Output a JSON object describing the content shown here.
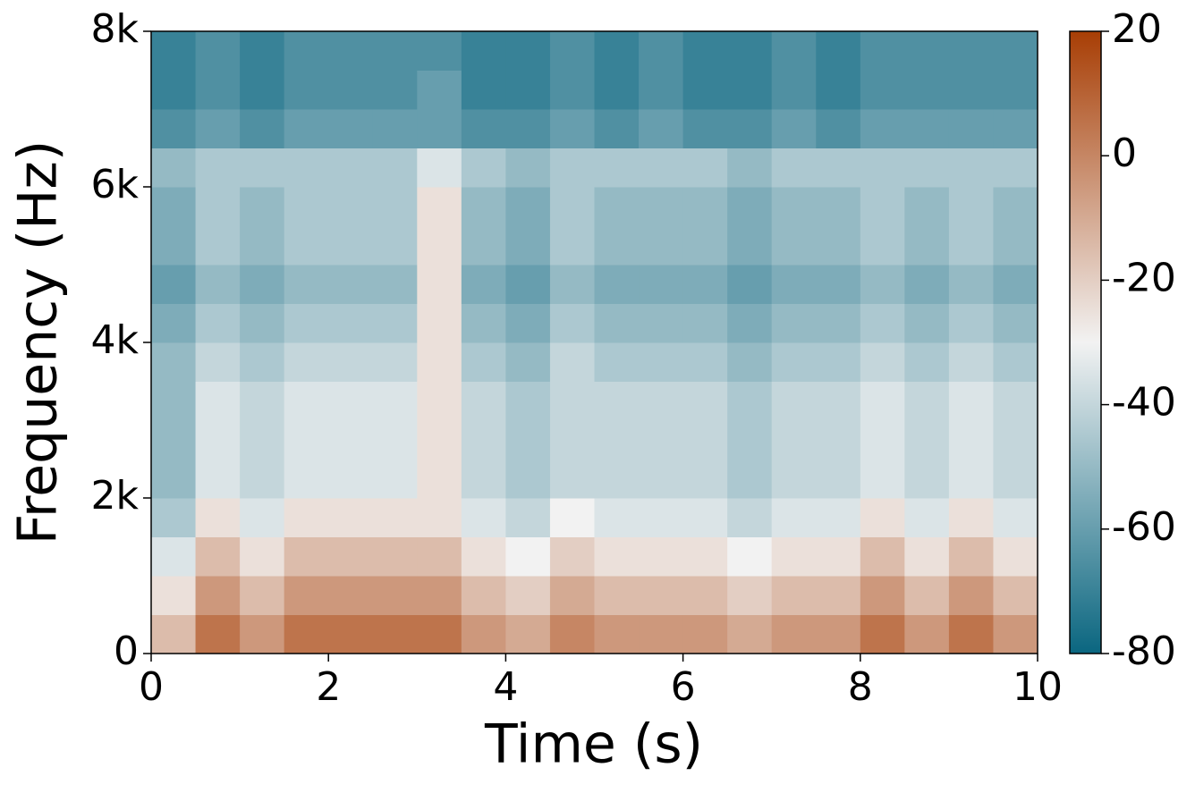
{
  "chart_data": {
    "type": "heatmap",
    "xlabel": "Time (s)",
    "ylabel": "Frequency (Hz)",
    "x_bins": [
      0,
      0.5,
      1,
      1.5,
      2,
      2.5,
      3,
      3.5,
      4,
      4.5,
      5,
      5.5,
      6,
      6.5,
      7,
      7.5,
      8,
      8.5,
      9,
      9.5,
      10
    ],
    "y_bins": [
      0,
      500,
      1000,
      1500,
      2000,
      2500,
      3000,
      3500,
      4000,
      4500,
      5000,
      5500,
      6000,
      6500,
      7000,
      7500,
      8000
    ],
    "z": [
      [
        -15,
        5,
        -5,
        5,
        5,
        5,
        5,
        -5,
        -10,
        0,
        -5,
        -5,
        -5,
        -10,
        -5,
        -5,
        5,
        -5,
        5,
        -5
      ],
      [
        -25,
        -5,
        -15,
        -5,
        -5,
        -5,
        -5,
        -15,
        -20,
        -10,
        -15,
        -15,
        -15,
        -20,
        -15,
        -15,
        -5,
        -15,
        -5,
        -15
      ],
      [
        -35,
        -15,
        -25,
        -15,
        -15,
        -15,
        -15,
        -25,
        -30,
        -20,
        -25,
        -25,
        -25,
        -30,
        -25,
        -25,
        -15,
        -25,
        -15,
        -25
      ],
      [
        -45,
        -25,
        -35,
        -25,
        -25,
        -25,
        -25,
        -35,
        -40,
        -30,
        -35,
        -35,
        -35,
        -40,
        -35,
        -35,
        -25,
        -35,
        -25,
        -35
      ],
      [
        -50,
        -35,
        -40,
        -35,
        -35,
        -35,
        -25,
        -40,
        -45,
        -40,
        -40,
        -40,
        -40,
        -45,
        -40,
        -40,
        -35,
        -40,
        -35,
        -40
      ],
      [
        -50,
        -35,
        -40,
        -35,
        -35,
        -35,
        -25,
        -40,
        -45,
        -40,
        -40,
        -40,
        -40,
        -45,
        -40,
        -40,
        -35,
        -40,
        -35,
        -40
      ],
      [
        -50,
        -35,
        -40,
        -35,
        -35,
        -35,
        -25,
        -40,
        -45,
        -40,
        -40,
        -40,
        -40,
        -45,
        -40,
        -40,
        -35,
        -40,
        -35,
        -40
      ],
      [
        -50,
        -40,
        -45,
        -40,
        -40,
        -40,
        -25,
        -45,
        -50,
        -40,
        -45,
        -45,
        -45,
        -50,
        -45,
        -45,
        -40,
        -45,
        -40,
        -45
      ],
      [
        -55,
        -45,
        -50,
        -45,
        -45,
        -45,
        -25,
        -50,
        -55,
        -45,
        -50,
        -50,
        -50,
        -55,
        -50,
        -50,
        -45,
        -50,
        -45,
        -50
      ],
      [
        -60,
        -50,
        -55,
        -50,
        -50,
        -50,
        -25,
        -55,
        -60,
        -50,
        -55,
        -55,
        -55,
        -60,
        -55,
        -55,
        -50,
        -55,
        -50,
        -55
      ],
      [
        -55,
        -45,
        -50,
        -45,
        -45,
        -45,
        -25,
        -50,
        -55,
        -45,
        -50,
        -50,
        -50,
        -55,
        -50,
        -50,
        -45,
        -50,
        -45,
        -50
      ],
      [
        -55,
        -45,
        -50,
        -45,
        -45,
        -45,
        -25,
        -50,
        -55,
        -45,
        -50,
        -50,
        -50,
        -55,
        -50,
        -50,
        -45,
        -50,
        -45,
        -50
      ],
      [
        -50,
        -45,
        -45,
        -45,
        -45,
        -45,
        -35,
        -45,
        -50,
        -45,
        -45,
        -45,
        -45,
        -50,
        -45,
        -45,
        -45,
        -45,
        -45,
        -45
      ],
      [
        -65,
        -60,
        -65,
        -60,
        -60,
        -60,
        -60,
        -65,
        -65,
        -60,
        -65,
        -60,
        -65,
        -65,
        -60,
        -65,
        -60,
        -60,
        -60,
        -60
      ],
      [
        -70,
        -65,
        -70,
        -65,
        -65,
        -65,
        -60,
        -70,
        -70,
        -65,
        -70,
        -65,
        -70,
        -70,
        -65,
        -70,
        -65,
        -65,
        -65,
        -65
      ],
      [
        -70,
        -65,
        -70,
        -65,
        -65,
        -65,
        -65,
        -70,
        -70,
        -65,
        -70,
        -65,
        -70,
        -70,
        -65,
        -70,
        -65,
        -65,
        -65,
        -65
      ]
    ],
    "xlim": [
      0,
      10
    ],
    "xticks": [
      0,
      2,
      4,
      6,
      8,
      10
    ],
    "ylim": [
      0,
      8000
    ],
    "yticks": [
      0,
      {
        "value": 2000,
        "label": "2k"
      },
      {
        "value": 4000,
        "label": "4k"
      },
      {
        "value": 6000,
        "label": "6k"
      },
      {
        "value": 8000,
        "label": "8k"
      }
    ],
    "colormap": [
      "#0a6680",
      "#f2f2f2",
      "#a83e05"
    ],
    "colorbar": {
      "lim": [
        -80,
        20
      ],
      "ticks": [
        -80,
        -60,
        -40,
        -20,
        0,
        20
      ]
    }
  }
}
